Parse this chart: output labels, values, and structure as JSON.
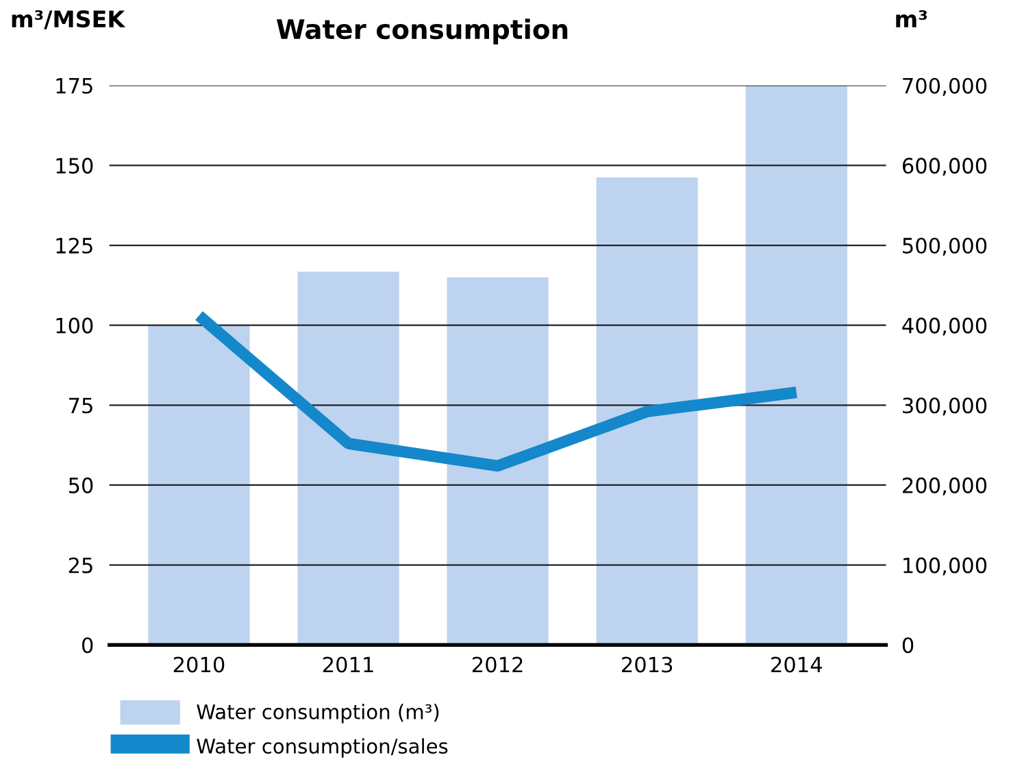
{
  "chart_data": {
    "type": "bar",
    "title": "Water consumption",
    "ylabel": "m³/MSEK",
    "y2label": "m³",
    "categories": [
      "2010",
      "2011",
      "2012",
      "2013",
      "2014"
    ],
    "series": [
      {
        "name": "Water consumption (m³)",
        "axis": "y2",
        "color": "#bed3ef",
        "values": [
          400000,
          467000,
          460000,
          585000,
          700000
        ]
      },
      {
        "name": "Water consumption/sales",
        "type": "line",
        "axis": "y",
        "color": "#1488cb",
        "values": [
          103,
          63,
          56,
          73,
          79
        ]
      }
    ],
    "ylim": [
      0,
      175
    ],
    "yticks": [
      0,
      25,
      50,
      75,
      100,
      125,
      150,
      175
    ],
    "y2lim": [
      0,
      700000
    ],
    "y2ticks": [
      {
        "value": 0,
        "label": "0"
      },
      {
        "value": 100000,
        "label": "100,000"
      },
      {
        "value": 200000,
        "label": "200,000"
      },
      {
        "value": 300000,
        "label": "300,000"
      },
      {
        "value": 400000,
        "label": "400,000"
      },
      {
        "value": 500000,
        "label": "500,000"
      },
      {
        "value": 600000,
        "label": "600,000"
      },
      {
        "value": 700000,
        "label": "700,000"
      }
    ],
    "grid": "y",
    "legend": "bottom left",
    "marker": "none",
    "line_style": "solid"
  }
}
